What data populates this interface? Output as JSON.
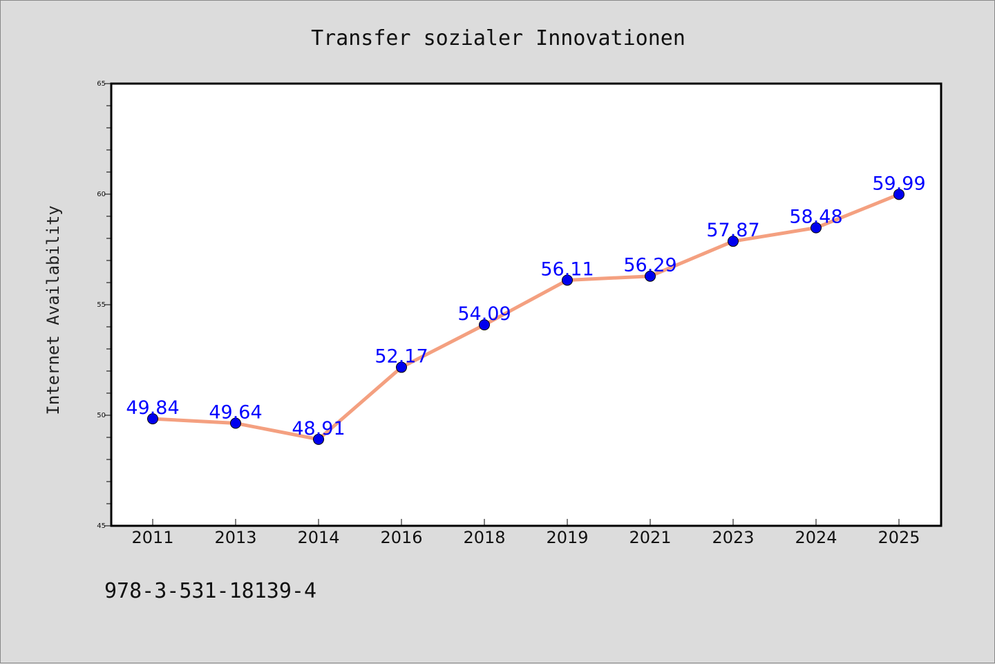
{
  "chart_data": {
    "type": "line",
    "title": "Transfer sozialer Innovationen",
    "ylabel": "Internet Availability",
    "xlabel": "",
    "categories": [
      "2011",
      "2013",
      "2014",
      "2016",
      "2018",
      "2019",
      "2021",
      "2023",
      "2024",
      "2025"
    ],
    "series": [
      {
        "values": [
          49.84,
          49.64,
          48.91,
          52.17,
          54.09,
          56.11,
          56.29,
          57.87,
          58.48,
          59.99
        ],
        "labels": [
          "49.84",
          "49.64",
          "48.91",
          "52.17",
          "54.09",
          "56.11",
          "56.29",
          "57.87",
          "58.48",
          "59.99"
        ]
      }
    ],
    "ylim": [
      45,
      65
    ],
    "yticks": [
      "45",
      "50",
      "55",
      "60",
      "65"
    ],
    "grid": false,
    "line_color": "#f4a080",
    "marker_color": "#0000ee",
    "label_color": "#0000ff"
  },
  "footer": {
    "isbn": "978-3-531-18139-4"
  },
  "colors": {
    "background": "#dcdcdc",
    "plot_background": "#ffffff"
  }
}
